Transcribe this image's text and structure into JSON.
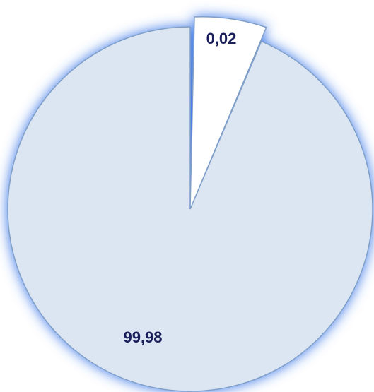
{
  "chart_data": {
    "type": "pie",
    "categories": [
      "",
      ""
    ],
    "values": [
      0.02,
      99.98
    ],
    "labels": [
      "0,02",
      "99,98"
    ],
    "colors": {
      "slice_small_fill": "#ffffff",
      "slice_large_fill": "#dce6f2",
      "slice_stroke": "#7f9fc9",
      "glow": "#2f6fe6"
    },
    "title": "",
    "legend": false
  }
}
